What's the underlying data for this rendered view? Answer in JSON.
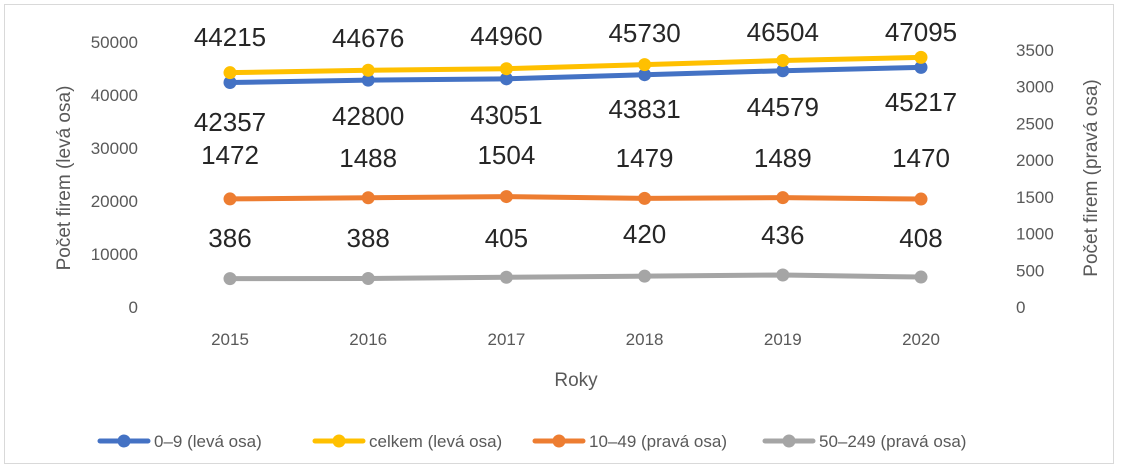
{
  "chart_data": {
    "type": "line",
    "title": "",
    "xlabel": "Roky",
    "ylabel_left": "Počet firem (levá osa)",
    "ylabel_right": "Počet firem (pravá osa)",
    "categories": [
      "2015",
      "2016",
      "2017",
      "2018",
      "2019",
      "2020"
    ],
    "ylim_left": [
      0,
      50000
    ],
    "yticks_left": [
      "0",
      "10000",
      "20000",
      "30000",
      "40000",
      "50000"
    ],
    "ylim_right": [
      0,
      3500
    ],
    "yticks_right": [
      "0",
      "500",
      "1000",
      "1500",
      "2000",
      "2500",
      "3000",
      "3500"
    ],
    "grid": false,
    "legend_position": "bottom",
    "series": [
      {
        "name": "0–9 (levá osa)",
        "axis": "left",
        "color": "#4472c4",
        "values": [
          42357,
          42800,
          43051,
          43831,
          44579,
          45217
        ],
        "labels": [
          "42357",
          "42800",
          "43051",
          "43831",
          "44579",
          "45217"
        ]
      },
      {
        "name": "celkem (levá osa)",
        "axis": "left",
        "color": "#ffc000",
        "values": [
          44215,
          44676,
          44960,
          45730,
          46504,
          47095
        ],
        "labels": [
          "44215",
          "44676",
          "44960",
          "45730",
          "46504",
          "47095"
        ]
      },
      {
        "name": "10–49 (pravá osa)",
        "axis": "right",
        "color": "#ed7d31",
        "values": [
          1472,
          1488,
          1504,
          1479,
          1489,
          1470
        ],
        "labels": [
          "1472",
          "1488",
          "1504",
          "1479",
          "1489",
          "1470"
        ]
      },
      {
        "name": "50–249 (pravá osa)",
        "axis": "right",
        "color": "#a5a5a5",
        "values": [
          386,
          388,
          405,
          420,
          436,
          408
        ],
        "labels": [
          "386",
          "388",
          "405",
          "420",
          "436",
          "408"
        ]
      }
    ]
  }
}
